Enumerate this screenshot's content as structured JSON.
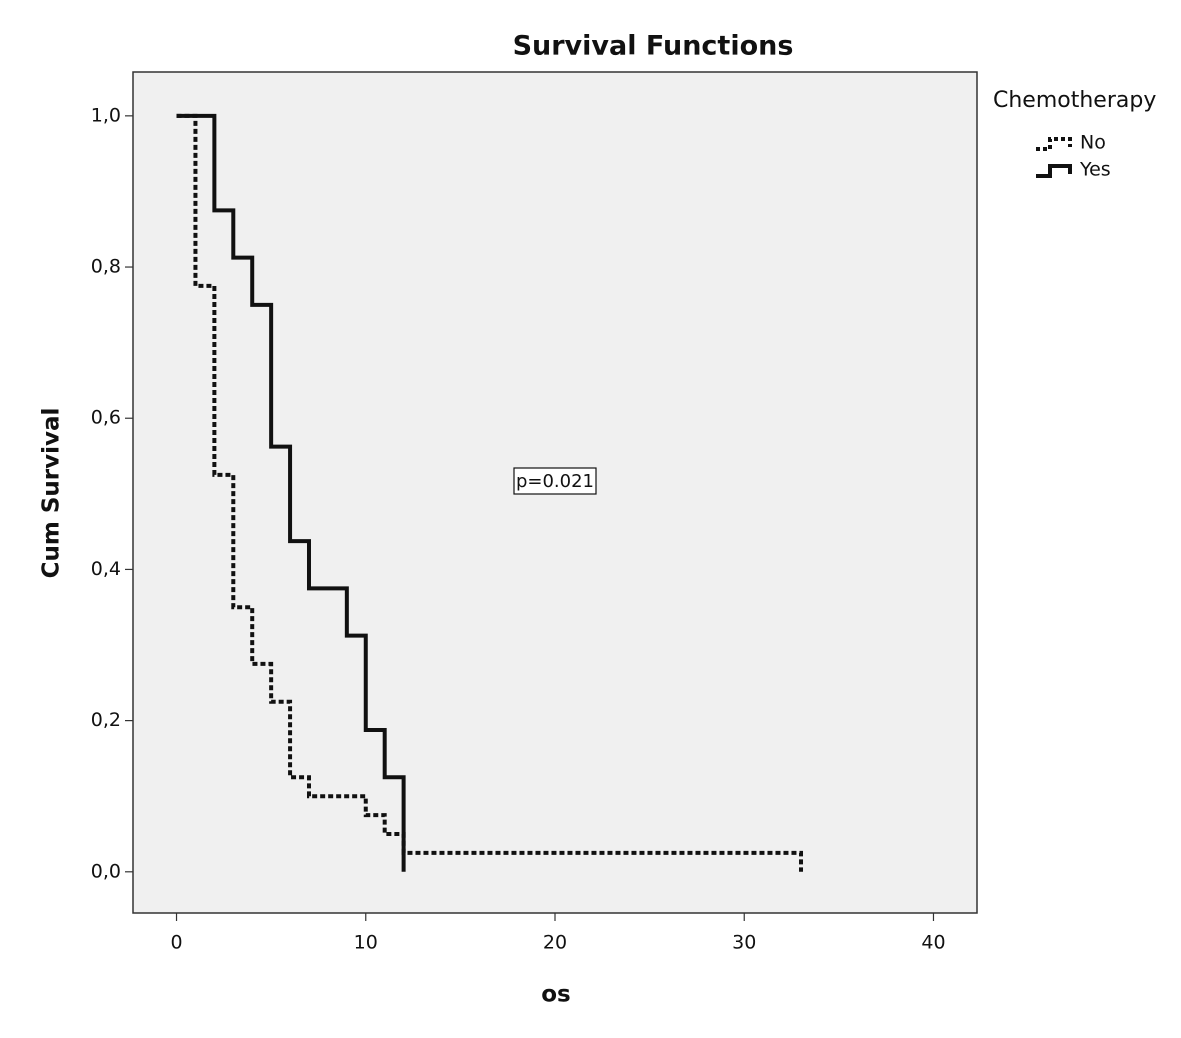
{
  "chart_data": {
    "type": "step",
    "title": "Survival Functions",
    "x_label": "os",
    "y_label": "Cum Survival",
    "annotation": "p=0.021",
    "legend_title": "Chemotherapy",
    "xlim": [
      -2.3,
      42.3
    ],
    "ylim": [
      -0.0545,
      1.058
    ],
    "xticks": [
      0,
      10,
      20,
      30,
      40
    ],
    "yticks": [
      {
        "value": 0,
        "label": "0,0"
      },
      {
        "value": 0.2,
        "label": "0,2"
      },
      {
        "value": 0.4,
        "label": "0,4"
      },
      {
        "value": 0.6,
        "label": "0,6"
      },
      {
        "value": 0.8,
        "label": "0,8"
      },
      {
        "value": 1,
        "label": "1,0"
      }
    ],
    "series": [
      {
        "name": "No",
        "color": "#111111",
        "dashed": true,
        "x": [
          0,
          1,
          2,
          3,
          4,
          5,
          6,
          7,
          10,
          11,
          12,
          33
        ],
        "values": [
          1,
          0.775,
          0.525,
          0.35,
          0.275,
          0.225,
          0.125,
          0.1,
          0.075,
          0.05,
          0.025,
          0
        ]
      },
      {
        "name": "Yes",
        "color": "#111111",
        "dashed": false,
        "x": [
          0,
          2,
          3,
          4,
          5,
          6,
          7,
          9,
          10,
          11,
          12
        ],
        "values": [
          1,
          0.875,
          0.8125,
          0.75,
          0.5625,
          0.4375,
          0.375,
          0.3125,
          0.1875,
          0.125,
          0
        ]
      }
    ]
  }
}
